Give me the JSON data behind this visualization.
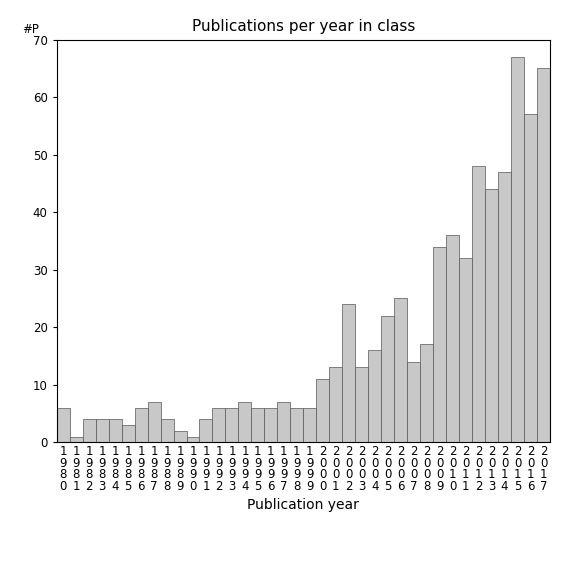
{
  "years": [
    1980,
    1981,
    1982,
    1983,
    1984,
    1985,
    1986,
    1987,
    1988,
    1989,
    1990,
    1991,
    1992,
    1993,
    1994,
    1995,
    1996,
    1997,
    1998,
    1999,
    2000,
    2001,
    2002,
    2003,
    2004,
    2005,
    2006,
    2007,
    2008,
    2009,
    2010,
    2011,
    2012,
    2013,
    2014,
    2015,
    2016,
    2017
  ],
  "values": [
    6,
    1,
    4,
    4,
    4,
    3,
    6,
    7,
    4,
    2,
    1,
    4,
    6,
    6,
    7,
    6,
    6,
    7,
    6,
    6,
    11,
    13,
    24,
    13,
    16,
    22,
    25,
    14,
    17,
    34,
    36,
    32,
    48,
    44,
    47,
    67,
    57,
    65
  ],
  "title": "Publications per year in class",
  "xlabel": "Publication year",
  "ylabel": "#P",
  "ylim": [
    0,
    70
  ],
  "bar_color": "#c8c8c8",
  "bar_edgecolor": "#555555",
  "background_color": "#ffffff",
  "tick_label_fontsize": 8.5,
  "axis_label_fontsize": 10,
  "title_fontsize": 11
}
